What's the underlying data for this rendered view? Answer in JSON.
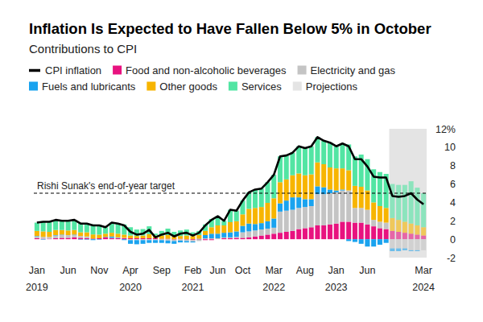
{
  "chart_data": {
    "type": "bar",
    "stacked": true,
    "grid": false,
    "legend": "top-left",
    "title": "Inflation Is Expected to Have Fallen Below 5% in October",
    "subtitle": "Contributions to CPI",
    "categories": [
      "Jan\n2019",
      null,
      null,
      null,
      null,
      "Jun",
      null,
      null,
      null,
      null,
      "Nov",
      null,
      null,
      null,
      null,
      "Apr\n2020",
      null,
      null,
      null,
      null,
      "Sep",
      null,
      null,
      null,
      null,
      "Feb\n2021",
      null,
      null,
      null,
      "Jun",
      null,
      null,
      null,
      "Oct",
      null,
      null,
      null,
      null,
      "Mar\n2022",
      null,
      null,
      null,
      null,
      "Aug",
      null,
      null,
      null,
      null,
      "Jan\n2023",
      null,
      null,
      null,
      null,
      "Jun",
      null,
      null,
      null,
      null,
      null,
      null,
      null,
      null,
      "Mar\n2024"
    ],
    "series": [
      {
        "name": "CPI inflation",
        "type": "line",
        "color": "#000000",
        "values": [
          1.8,
          1.9,
          1.9,
          2.1,
          2.0,
          2.0,
          2.1,
          1.7,
          1.7,
          1.5,
          1.5,
          1.3,
          1.8,
          1.7,
          1.5,
          0.8,
          0.5,
          0.6,
          1.0,
          0.2,
          0.5,
          0.7,
          0.3,
          0.6,
          0.7,
          0.4,
          0.7,
          1.5,
          2.1,
          2.5,
          2.0,
          3.2,
          3.1,
          4.2,
          5.1,
          5.4,
          5.5,
          6.2,
          7.0,
          9.0,
          9.1,
          9.4,
          10.1,
          9.9,
          10.1,
          11.1,
          10.7,
          10.5,
          10.1,
          10.4,
          10.1,
          8.7,
          8.7,
          7.9,
          6.8,
          6.7,
          6.7,
          4.7,
          4.6,
          4.7,
          5.0,
          4.3,
          3.8
        ]
      },
      {
        "name": "Food and non-alcoholic beverages",
        "color": "#e8127f",
        "values": [
          0.1,
          0.05,
          0.05,
          0.1,
          0.15,
          0.15,
          0.2,
          0.15,
          0.1,
          0.07,
          0.1,
          0.2,
          0.1,
          0.1,
          0.1,
          0.1,
          0.1,
          0.1,
          0.1,
          0.1,
          0.05,
          0.05,
          -0.05,
          0.05,
          -0.05,
          -0.1,
          -0.05,
          -0.1,
          -0.1,
          0.0,
          0.1,
          0.1,
          0.15,
          0.15,
          0.2,
          0.3,
          0.4,
          0.5,
          0.6,
          0.7,
          0.8,
          0.9,
          1.1,
          1.2,
          1.3,
          1.5,
          1.5,
          1.6,
          1.7,
          1.9,
          1.9,
          1.8,
          1.8,
          1.6,
          1.4,
          1.2,
          1.1,
          0.9,
          0.8,
          0.7,
          0.6,
          0.5,
          0.4
        ]
      },
      {
        "name": "Electricity and gas",
        "color": "#c4c4c4",
        "values": [
          0.2,
          0.2,
          0.2,
          0.3,
          0.3,
          0.3,
          0.25,
          0.2,
          0.2,
          0.0,
          0.0,
          0.0,
          0.05,
          0.05,
          0.05,
          -0.1,
          -0.1,
          -0.1,
          -0.1,
          -0.1,
          -0.1,
          -0.15,
          -0.15,
          -0.15,
          -0.15,
          -0.15,
          -0.15,
          0.1,
          0.1,
          0.1,
          0.1,
          0.1,
          0.1,
          0.6,
          0.65,
          0.65,
          0.65,
          0.65,
          0.65,
          2.3,
          2.3,
          2.3,
          2.3,
          2.3,
          2.3,
          3.4,
          3.4,
          3.4,
          3.4,
          3.4,
          3.4,
          1.6,
          1.6,
          1.6,
          0.7,
          0.7,
          0.7,
          -1.0,
          -1.0,
          -1.0,
          -1.2,
          -1.2,
          -1.2
        ]
      },
      {
        "name": "Fuels and lubricants",
        "color": "#1aa3ef",
        "values": [
          0.05,
          -0.05,
          0.0,
          0.05,
          0.05,
          0.0,
          0.05,
          -0.05,
          -0.05,
          -0.1,
          -0.05,
          0.05,
          0.15,
          0.05,
          -0.1,
          -0.4,
          -0.45,
          -0.4,
          -0.3,
          -0.3,
          -0.3,
          -0.3,
          -0.3,
          -0.2,
          -0.15,
          -0.1,
          0.05,
          0.35,
          0.5,
          0.5,
          0.5,
          0.55,
          0.6,
          0.7,
          0.85,
          0.7,
          0.7,
          0.8,
          1.0,
          0.9,
          1.1,
          1.35,
          1.15,
          0.85,
          0.75,
          0.85,
          0.75,
          0.4,
          0.2,
          0.1,
          -0.2,
          -0.3,
          -0.5,
          -0.8,
          -0.8,
          -0.6,
          -0.4,
          -0.3,
          -0.3,
          -0.2,
          -0.1,
          -0.1,
          0.0
        ]
      },
      {
        "name": "Other goods",
        "color": "#f7b500",
        "values": [
          0.55,
          0.6,
          0.55,
          0.55,
          0.5,
          0.5,
          0.5,
          0.4,
          0.45,
          0.45,
          0.4,
          0.35,
          0.4,
          0.4,
          0.35,
          0.3,
          0.25,
          0.3,
          0.45,
          0.3,
          0.35,
          0.4,
          0.3,
          0.3,
          0.4,
          0.35,
          0.4,
          0.45,
          0.7,
          0.9,
          0.8,
          1.1,
          1.1,
          1.25,
          1.6,
          1.75,
          1.75,
          2.0,
          2.2,
          2.3,
          2.3,
          2.4,
          2.6,
          2.6,
          2.7,
          2.6,
          2.5,
          2.4,
          2.4,
          2.3,
          2.2,
          2.4,
          2.3,
          2.1,
          1.9,
          1.7,
          1.6,
          1.4,
          1.3,
          1.2,
          1.1,
          1.0,
          0.9
        ]
      },
      {
        "name": "Services",
        "color": "#52e5a3",
        "values": [
          0.9,
          1.1,
          1.1,
          1.1,
          1.0,
          1.05,
          1.1,
          1.0,
          1.0,
          1.08,
          1.05,
          0.7,
          1.1,
          1.1,
          1.1,
          0.9,
          0.7,
          0.7,
          0.85,
          0.2,
          0.5,
          0.7,
          0.5,
          0.6,
          0.65,
          0.4,
          0.45,
          0.7,
          0.9,
          1.0,
          0.5,
          1.35,
          1.15,
          1.5,
          1.8,
          2.0,
          2.0,
          2.25,
          2.55,
          2.8,
          2.6,
          2.45,
          2.95,
          2.95,
          3.05,
          2.75,
          2.55,
          2.7,
          2.4,
          2.7,
          2.8,
          3.2,
          3.5,
          3.4,
          3.6,
          3.7,
          3.7,
          3.7,
          3.8,
          4.0,
          4.6,
          4.1,
          3.7
        ]
      }
    ],
    "projections": {
      "name": "Projections",
      "color": "#e4e4e4",
      "months": 6
    },
    "target": {
      "label": "Rishi Sunak's end-of-year target",
      "value": 5
    },
    "ylim": [
      -2,
      12
    ],
    "yticks": [
      -2,
      0,
      2,
      4,
      6,
      8,
      10,
      {
        "value": 12,
        "label": "12%"
      }
    ]
  }
}
